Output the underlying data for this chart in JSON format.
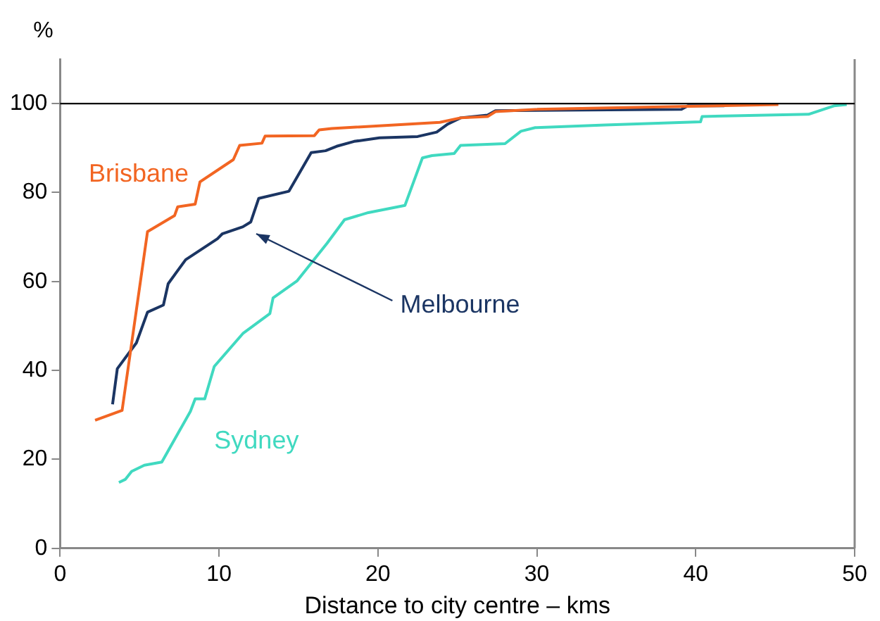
{
  "chart_data": {
    "type": "line",
    "xlabel": "Distance to city centre – kms",
    "ylabel": "%",
    "xlim": [
      0,
      50
    ],
    "xticks": [
      0,
      10,
      20,
      30,
      40,
      50
    ],
    "ylim": [
      0,
      110
    ],
    "yticks": [
      0,
      20,
      40,
      60,
      80,
      100
    ],
    "grid": false,
    "legend": false,
    "marker": "none",
    "line_style": "solid",
    "ref_lines": [
      {
        "axis": "y",
        "value": 100,
        "color": "#000000"
      }
    ],
    "series": [
      {
        "name": "Brisbane",
        "color": "#f26522",
        "x": [
          2.2,
          3.9,
          5.5,
          7.2,
          7.4,
          8.5,
          8.8,
          10.9,
          11.3,
          12.7,
          12.9,
          16.0,
          16.3,
          17.1,
          23.9,
          25.2,
          26.9,
          27.4,
          29.9,
          45.2
        ],
        "values": [
          28.8,
          31,
          71.2,
          74.8,
          76.8,
          77.4,
          82.4,
          87.4,
          90.6,
          91.1,
          92.7,
          92.8,
          94.1,
          94.4,
          95.8,
          96.8,
          97.1,
          98.2,
          98.7,
          99.8
        ]
      },
      {
        "name": "Melbourne",
        "color": "#1b3563",
        "x": [
          3.3,
          3.6,
          4.8,
          5.5,
          6.5,
          6.8,
          7.9,
          9.9,
          10.2,
          11.5,
          12.0,
          12.5,
          14.4,
          15.8,
          16.7,
          17.4,
          18.5,
          20.1,
          22.5,
          23.7,
          24.4,
          25.2,
          26.9,
          27.4,
          39.1,
          39.5,
          41.8
        ],
        "values": [
          32.4,
          40.4,
          46.2,
          53.1,
          54.7,
          59.5,
          64.9,
          69.6,
          70.7,
          72.3,
          73.4,
          78.7,
          80.3,
          89.0,
          89.4,
          90.4,
          91.5,
          92.3,
          92.6,
          93.6,
          95.4,
          96.8,
          97.4,
          98.4,
          98.7,
          99.5,
          99.5
        ]
      },
      {
        "name": "Sydney",
        "color": "#40d9c0",
        "x": [
          3.7,
          4.1,
          4.5,
          5.3,
          6.4,
          8.2,
          8.5,
          9.1,
          9.7,
          11.5,
          13.2,
          13.4,
          14.9,
          16.8,
          17.9,
          19.4,
          21.7,
          22.8,
          23.4,
          24.8,
          25.2,
          28.0,
          29.0,
          29.9,
          34.3,
          40.3,
          40.4,
          47.1,
          48.7,
          49.5
        ],
        "values": [
          14.8,
          15.5,
          17.3,
          18.7,
          19.4,
          30.8,
          33.6,
          33.6,
          40.9,
          48.3,
          52.8,
          56.3,
          60.1,
          68.6,
          73.9,
          75.5,
          77.1,
          87.8,
          88.3,
          88.8,
          90.6,
          91.0,
          93.8,
          94.6,
          95.2,
          95.9,
          97.1,
          97.6,
          99.5,
          99.8
        ]
      }
    ]
  }
}
